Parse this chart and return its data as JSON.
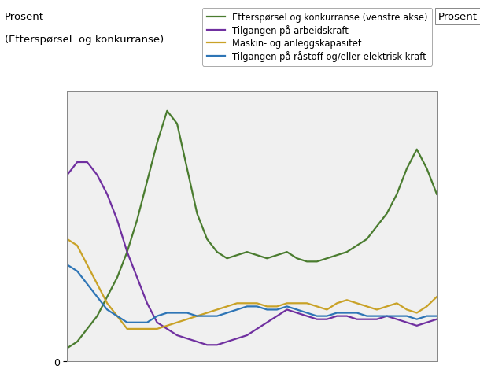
{
  "legend": [
    {
      "label": "Etterspørsel og konkurranse (venstre akse)",
      "color": "#4a7c2f"
    },
    {
      "label": "Tilgangen på arbeidskraft",
      "color": "#7030a0"
    },
    {
      "label": "Maskin- og anleggskapasitet",
      "color": "#c9a227"
    },
    {
      "label": "Tilgangen på råstoff og/eller elektrisk kraft",
      "color": "#2e75b6"
    }
  ],
  "green_y": [
    2,
    3,
    5,
    7,
    10,
    13,
    17,
    22,
    28,
    34,
    39,
    37,
    30,
    23,
    19,
    17,
    16,
    16.5,
    17,
    16.5,
    16,
    16.5,
    17,
    16,
    15.5,
    15.5,
    16,
    16.5,
    17,
    18,
    19,
    21,
    23,
    26,
    30,
    33,
    30,
    26
  ],
  "purple_y": [
    29,
    31,
    31,
    29,
    26,
    22,
    17,
    13,
    9,
    6,
    5,
    4,
    3.5,
    3,
    2.5,
    2.5,
    3,
    3.5,
    4,
    5,
    6,
    7,
    8,
    7.5,
    7,
    6.5,
    6.5,
    7,
    7,
    6.5,
    6.5,
    6.5,
    7,
    6.5,
    6,
    5.5,
    6,
    6.5
  ],
  "orange_y": [
    19,
    18,
    15,
    12,
    9,
    7,
    5,
    5,
    5,
    5,
    5.5,
    6,
    6.5,
    7,
    7.5,
    8,
    8.5,
    9,
    9,
    9,
    8.5,
    8.5,
    9,
    9,
    9,
    8.5,
    8,
    9,
    9.5,
    9,
    8.5,
    8,
    8.5,
    9,
    8,
    7.5,
    8.5,
    10
  ],
  "blue_y": [
    15,
    14,
    12,
    10,
    8,
    7,
    6,
    6,
    6,
    7,
    7.5,
    7.5,
    7.5,
    7,
    7,
    7,
    7.5,
    8,
    8.5,
    8.5,
    8,
    8,
    8.5,
    8,
    7.5,
    7,
    7,
    7.5,
    7.5,
    7.5,
    7,
    7,
    7,
    7,
    7,
    6.5,
    7,
    7
  ],
  "n_points": 38,
  "ylim_left": [
    0,
    42
  ],
  "ylim_right": [
    0,
    42
  ],
  "bg_color": "#ffffff",
  "grid_color": "#c8c8c8",
  "plot_bg": "#f0f0f0",
  "ylabel_left_line1": "Prosent",
  "ylabel_left_line2": "(Etterspørsel  og konkurranse)",
  "ylabel_right": "Prosent"
}
